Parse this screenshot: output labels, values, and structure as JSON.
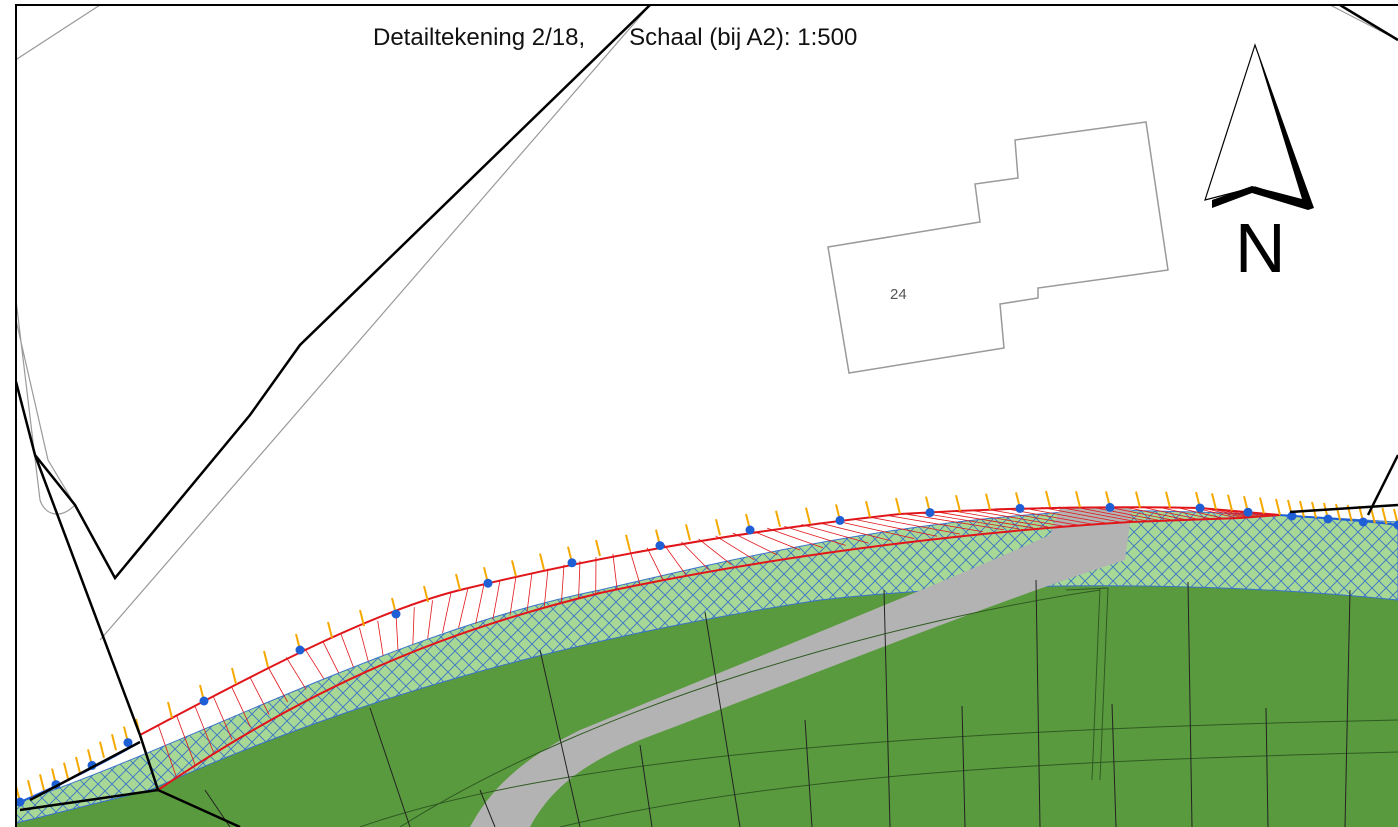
{
  "header": {
    "sheet": "Detailtekening 2/18,",
    "scale": "Schaal (bij A2): 1:500"
  },
  "parcel": {
    "house_number": "24"
  },
  "north_arrow": {
    "letter": "N",
    "icon": "north-arrow-icon"
  },
  "colors": {
    "boundary": "#000000",
    "parcel_outline": "#9a9a9a",
    "project_area_outline": "#e0161b",
    "project_hatch": "#e0161b",
    "light_green": "#a8d896",
    "dark_green": "#5a9a3e",
    "crosshatch": "#3a73c8",
    "road": "#b3b3b3",
    "tick_marks": "#f5a800",
    "points": "#1f5fd6"
  }
}
